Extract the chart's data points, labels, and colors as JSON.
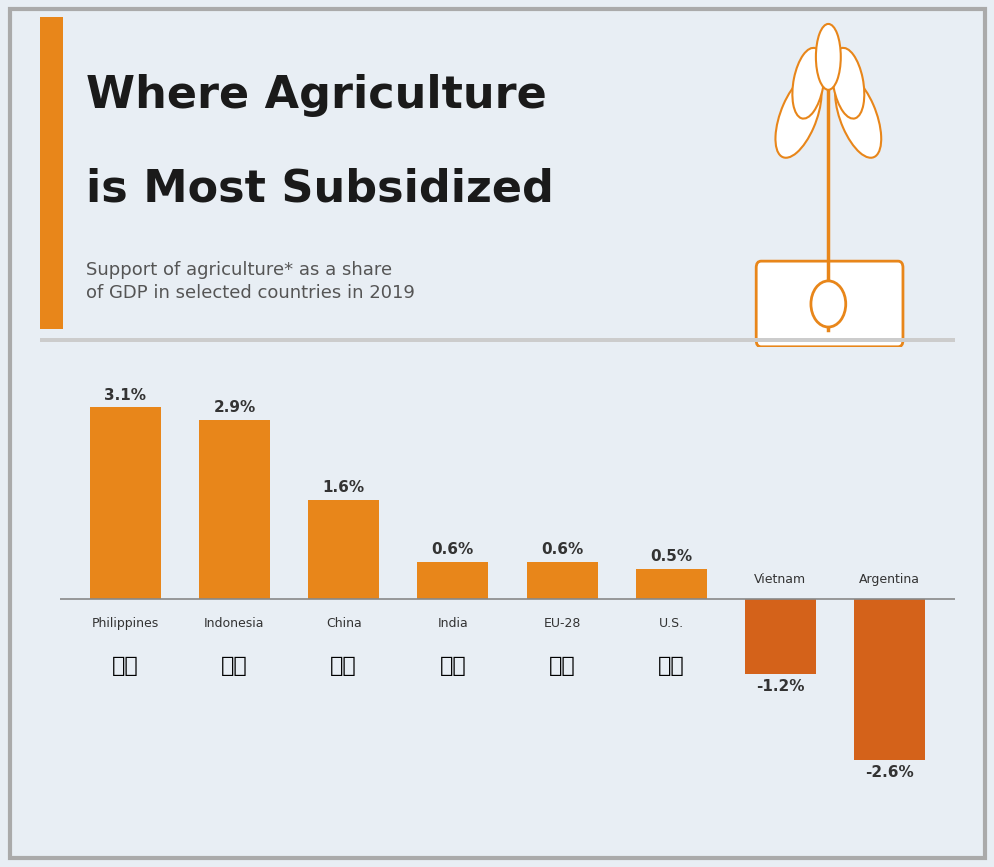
{
  "title_line1": "Where Agriculture",
  "title_line2": "is Most Subsidized",
  "subtitle": "Support of agriculture* as a share\nof GDP in selected countries in 2019",
  "categories": [
    "Philippines",
    "Indonesia",
    "China",
    "India",
    "EU-28",
    "U.S.",
    "Vietnam",
    "Argentina"
  ],
  "values": [
    3.1,
    2.9,
    1.6,
    0.6,
    0.6,
    0.5,
    -1.2,
    -2.6
  ],
  "labels": [
    "3.1%",
    "2.9%",
    "1.6%",
    "0.6%",
    "0.6%",
    "0.5%",
    "-1.2%",
    "-2.6%"
  ],
  "bar_color_positive": "#E8861A",
  "bar_color_negative": "#D4621A",
  "background_color": "#E8EEF4",
  "title_color": "#1A1A1A",
  "subtitle_color": "#555555",
  "accent_color": "#E8861A",
  "border_color": "#CCCCCC",
  "ylim": [
    -3.2,
    3.8
  ],
  "flag_emojis": [
    "🇵🇭",
    "🇮🇩",
    "🇨🇳",
    "🇮🇳",
    "🇪🇺",
    "🇺🇸",
    "🇻🇳",
    "🇦🇷"
  ]
}
